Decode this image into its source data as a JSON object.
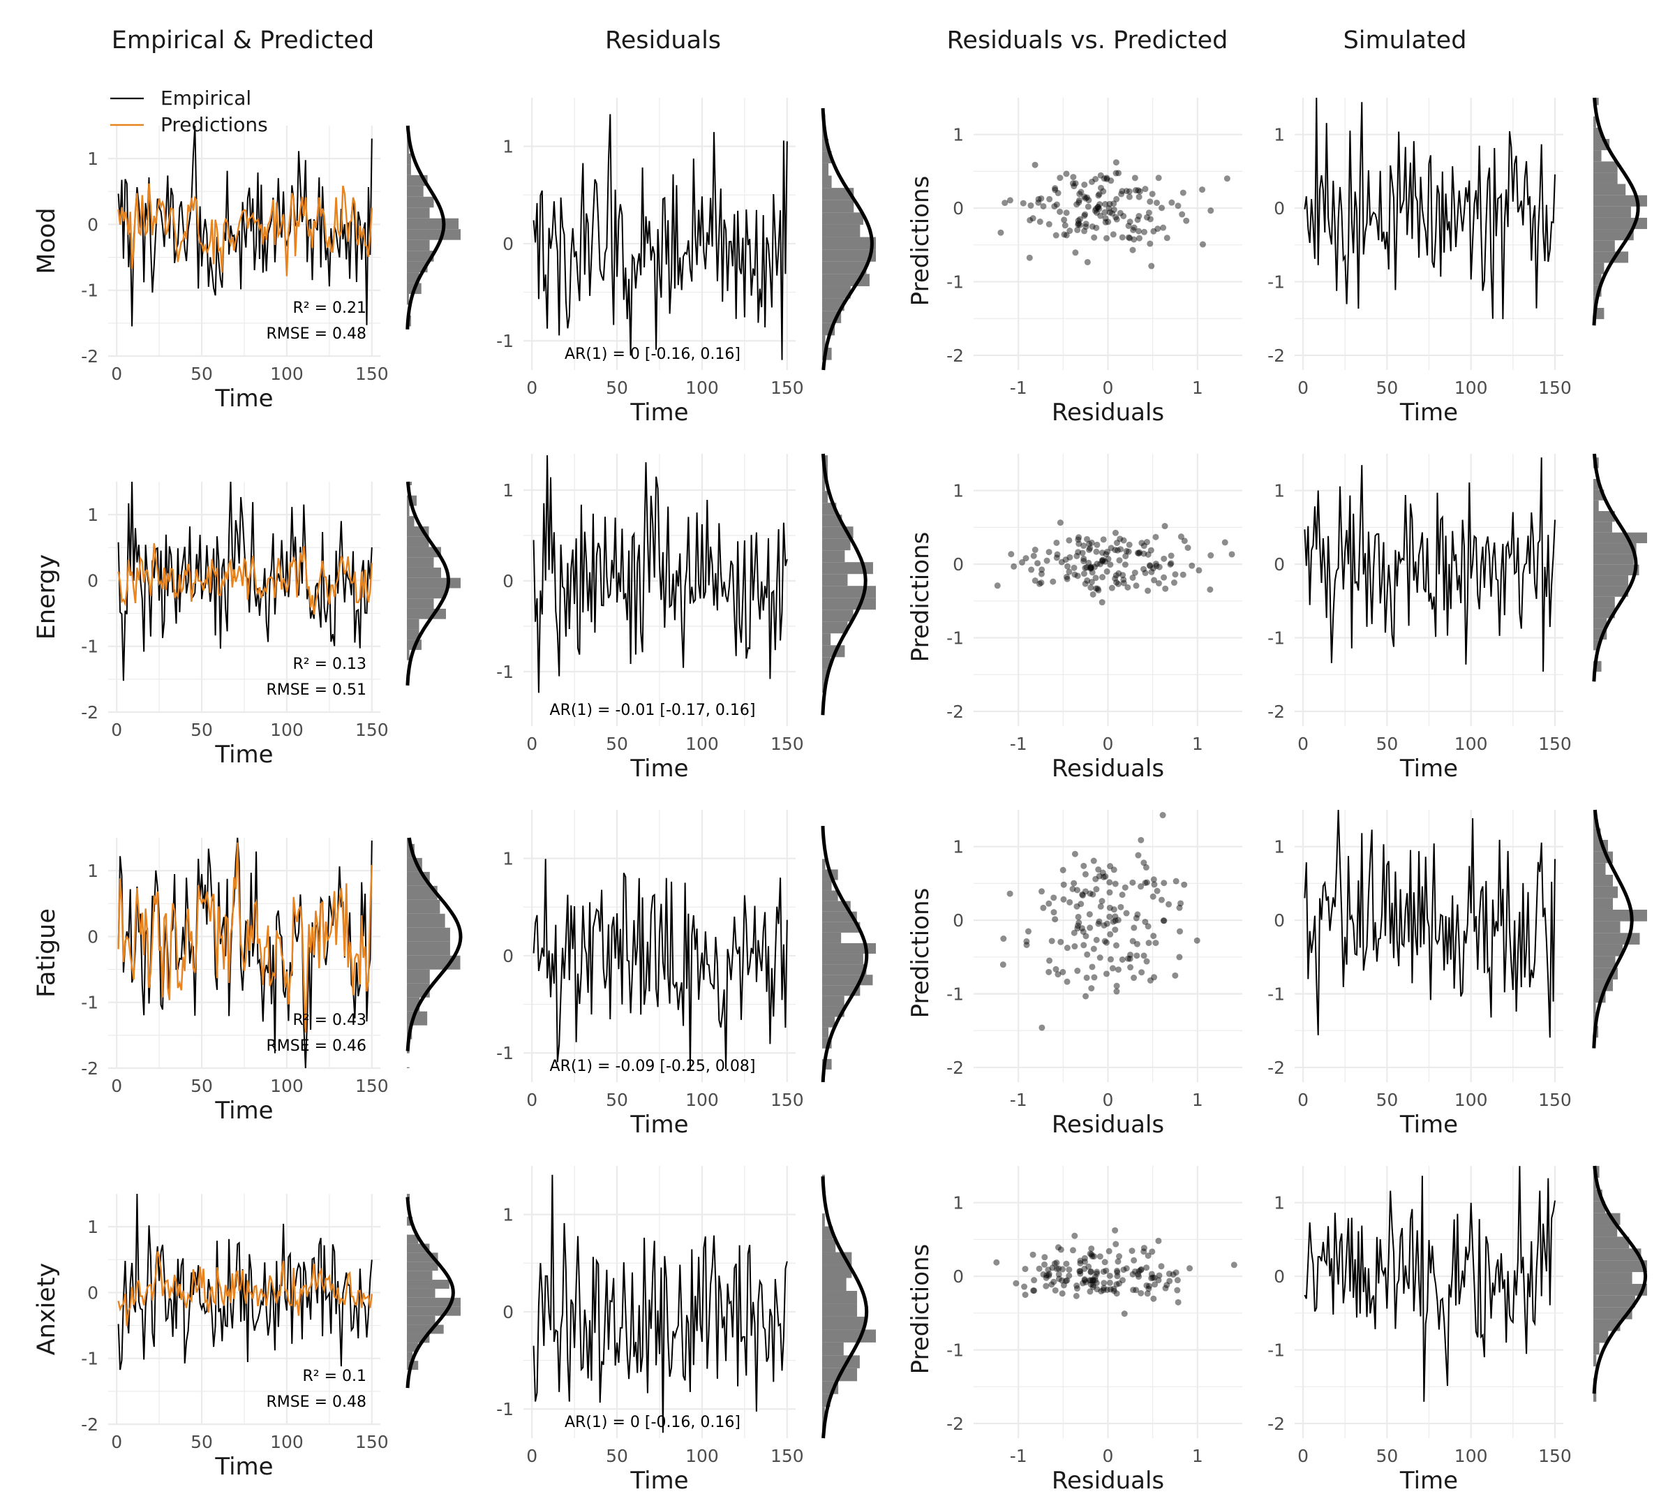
{
  "column_titles": [
    "Empirical & Predicted",
    "Residuals",
    "Residuals vs. Predicted",
    "Simulated"
  ],
  "legend": {
    "empirical_label": "Empirical",
    "predictions_label": "Predictions",
    "empirical_color": "#000000",
    "predictions_color": "#e8841f"
  },
  "axis_labels": {
    "time": "Time",
    "residuals": "Residuals",
    "predictions": "Predictions"
  },
  "colors": {
    "empirical": "#000000",
    "predicted": "#e8841f",
    "histogram": "#7f7f7f",
    "density": "#000000",
    "grid": "#ebebeb",
    "points": "#000000"
  },
  "chart_data": {
    "type": "line",
    "title": "",
    "x": {
      "label": "Time",
      "lim": [
        0,
        150
      ],
      "ticks": [
        0,
        50,
        100,
        150
      ]
    },
    "panels": [
      {
        "variable": "Mood",
        "r2_label": "R² = 0.21",
        "rmse_label": "RMSE = 0.48",
        "ar1_label": "AR(1) = 0 [-0.16, 0.16]",
        "empirical_sd": 0.55,
        "predicted_sd": 0.25,
        "residual_sd": 0.48,
        "simulated_sd": 0.55,
        "ylim": [
          -2,
          1.5
        ],
        "yticks": [
          -2,
          -1,
          0,
          1
        ],
        "resid_ylim": [
          -1.3,
          1.5
        ],
        "resid_yticks": [
          -1,
          0,
          1
        ],
        "scatter_xlim": [
          -1.5,
          1.5
        ],
        "scatter_xticks": [
          -1,
          0,
          1
        ],
        "scatter_ylim": [
          -2.2,
          1.5
        ],
        "scatter_yticks": [
          -2,
          -1,
          0,
          1
        ]
      },
      {
        "variable": "Energy",
        "r2_label": "R² = 0.13",
        "rmse_label": "RMSE = 0.51",
        "ar1_label": "AR(1) = -0.01 [-0.17, 0.16]",
        "empirical_sd": 0.55,
        "predicted_sd": 0.2,
        "residual_sd": 0.51,
        "simulated_sd": 0.55,
        "ylim": [
          -2,
          1.5
        ],
        "yticks": [
          -2,
          -1,
          0,
          1
        ],
        "resid_ylim": [
          -1.6,
          1.4
        ],
        "resid_yticks": [
          -1,
          0,
          1
        ],
        "scatter_xlim": [
          -1.5,
          1.5
        ],
        "scatter_xticks": [
          -1,
          0,
          1
        ],
        "scatter_ylim": [
          -2.2,
          1.5
        ],
        "scatter_yticks": [
          -2,
          -1,
          0,
          1
        ]
      },
      {
        "variable": "Fatigue",
        "r2_label": "R² = 0.43",
        "rmse_label": "RMSE = 0.46",
        "ar1_label": "AR(1) = -0.09 [-0.25, 0.08]",
        "empirical_sd": 0.6,
        "predicted_sd": 0.45,
        "residual_sd": 0.46,
        "simulated_sd": 0.6,
        "ylim": [
          -2,
          1.5
        ],
        "yticks": [
          -2,
          -1,
          0,
          1
        ],
        "resid_ylim": [
          -1.3,
          1.5
        ],
        "resid_yticks": [
          -1,
          0,
          1
        ],
        "scatter_xlim": [
          -1.5,
          1.5
        ],
        "scatter_xticks": [
          -1,
          0,
          1
        ],
        "scatter_ylim": [
          -2.2,
          1.5
        ],
        "scatter_yticks": [
          -2,
          -1,
          0,
          1
        ]
      },
      {
        "variable": "Anxiety",
        "r2_label": "R² = 0.1",
        "rmse_label": "RMSE = 0.48",
        "ar1_label": "AR(1) = 0 [-0.16, 0.16]",
        "empirical_sd": 0.5,
        "predicted_sd": 0.16,
        "residual_sd": 0.48,
        "simulated_sd": 0.55,
        "ylim": [
          -2,
          1.5
        ],
        "yticks": [
          -2,
          -1,
          0,
          1
        ],
        "resid_ylim": [
          -1.3,
          1.5
        ],
        "resid_yticks": [
          -1,
          0,
          1
        ],
        "scatter_xlim": [
          -1.5,
          1.5
        ],
        "scatter_xticks": [
          -1,
          0,
          1
        ],
        "scatter_ylim": [
          -2.2,
          1.5
        ],
        "scatter_yticks": [
          -2,
          -1,
          0,
          1
        ]
      }
    ]
  }
}
